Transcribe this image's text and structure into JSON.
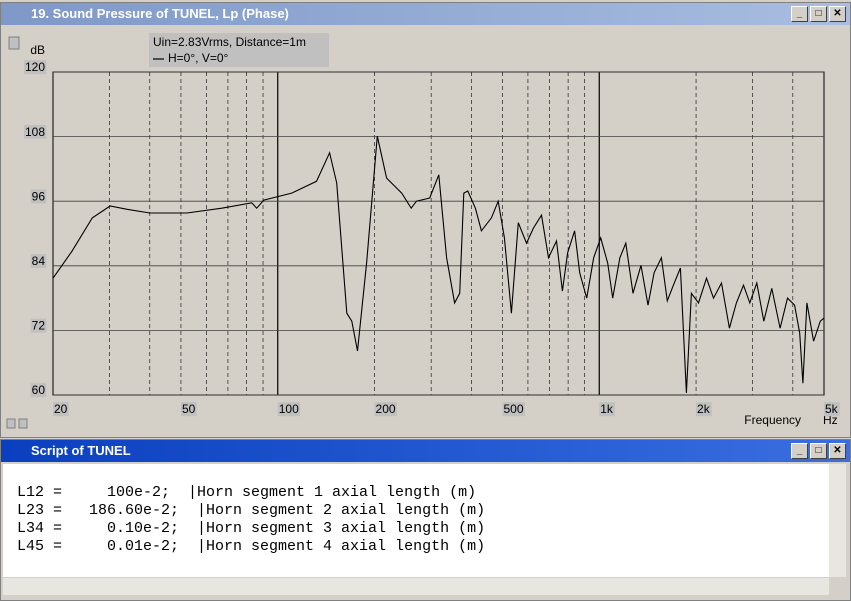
{
  "window_plot": {
    "title": "19. Sound Pressure of TUNEL, Lp (Phase)"
  },
  "chart_data": {
    "type": "line",
    "annotation": "Uin=2.83Vrms, Distance=1m",
    "y_label": "dB",
    "x_label": "Frequency",
    "x_unit": "Hz",
    "x": [
      20,
      22.9,
      26.5,
      30.1,
      34,
      40,
      52.2,
      67,
      83,
      86,
      90.5,
      110.5,
      132,
      145,
      152.5,
      164,
      170,
      177,
      189,
      204,
      218,
      243,
      260,
      270,
      297,
      317,
      335,
      355,
      368,
      379,
      390,
      412,
      430,
      462,
      485,
      507,
      533,
      560,
      594,
      624,
      661,
      695,
      736,
      768,
      797,
      838,
      869,
      914,
      961,
      1010,
      1062,
      1101,
      1159,
      1209,
      1273,
      1348,
      1418,
      1481,
      1560,
      1628,
      1700,
      1788,
      1867,
      1935,
      2036,
      2155,
      2266,
      2400,
      2540,
      2670,
      2810,
      2940,
      3090,
      3250,
      3440,
      3650,
      3850,
      4050,
      4200,
      4300,
      4425,
      4640,
      4870,
      5000
    ],
    "series": [
      {
        "name": "H=0°, V=0°",
        "color": "#000000",
        "values": [
          81.7,
          86.7,
          92.9,
          95.1,
          94.5,
          93.8,
          93.8,
          94.7,
          95.7,
          94.7,
          96.2,
          97.5,
          99.7,
          105,
          99.4,
          75.2,
          73.7,
          68.2,
          84.5,
          108.1,
          100.3,
          97.5,
          94.7,
          96,
          96.6,
          100.9,
          85.5,
          77.1,
          78.9,
          97.5,
          97.9,
          94.7,
          90.5,
          92.9,
          96,
          89.2,
          75.2,
          92,
          88.2,
          91,
          93.4,
          85.5,
          88.6,
          79.3,
          86.4,
          90.5,
          82.7,
          78,
          85.5,
          89.2,
          84.5,
          78,
          85.5,
          88.2,
          78.9,
          84.1,
          76.7,
          82.7,
          85.5,
          77.5,
          80.4,
          83.6,
          60.4,
          78.9,
          77.1,
          81.7,
          78,
          80.8,
          72.4,
          77.1,
          80.4,
          77.1,
          80.8,
          73.7,
          79.8,
          72.4,
          78,
          76.7,
          71.5,
          62.2,
          77.1,
          70,
          73.7,
          74.3
        ]
      }
    ],
    "xlim": [
      20,
      5000
    ],
    "ylim": [
      60,
      120
    ],
    "xscale": "log",
    "grid": true,
    "xticks": [
      20,
      50,
      100,
      200,
      500,
      {
        "value": 1000,
        "label": "1k"
      },
      {
        "value": 2000,
        "label": "2k"
      },
      {
        "value": 5000,
        "label": "5k"
      }
    ],
    "yticks": [
      60,
      72,
      84,
      96,
      108,
      120
    ]
  },
  "window_script": {
    "title": "Script of TUNEL",
    "lines": [
      "L12 =     100e-2;  |Horn segment 1 axial length (m)",
      "L23 =   186.60e-2;  |Horn segment 2 axial length (m)",
      "L34 =     0.10e-2;  |Horn segment 3 axial length (m)",
      "L45 =     0.01e-2;  |Horn segment 4 axial length (m)"
    ]
  }
}
